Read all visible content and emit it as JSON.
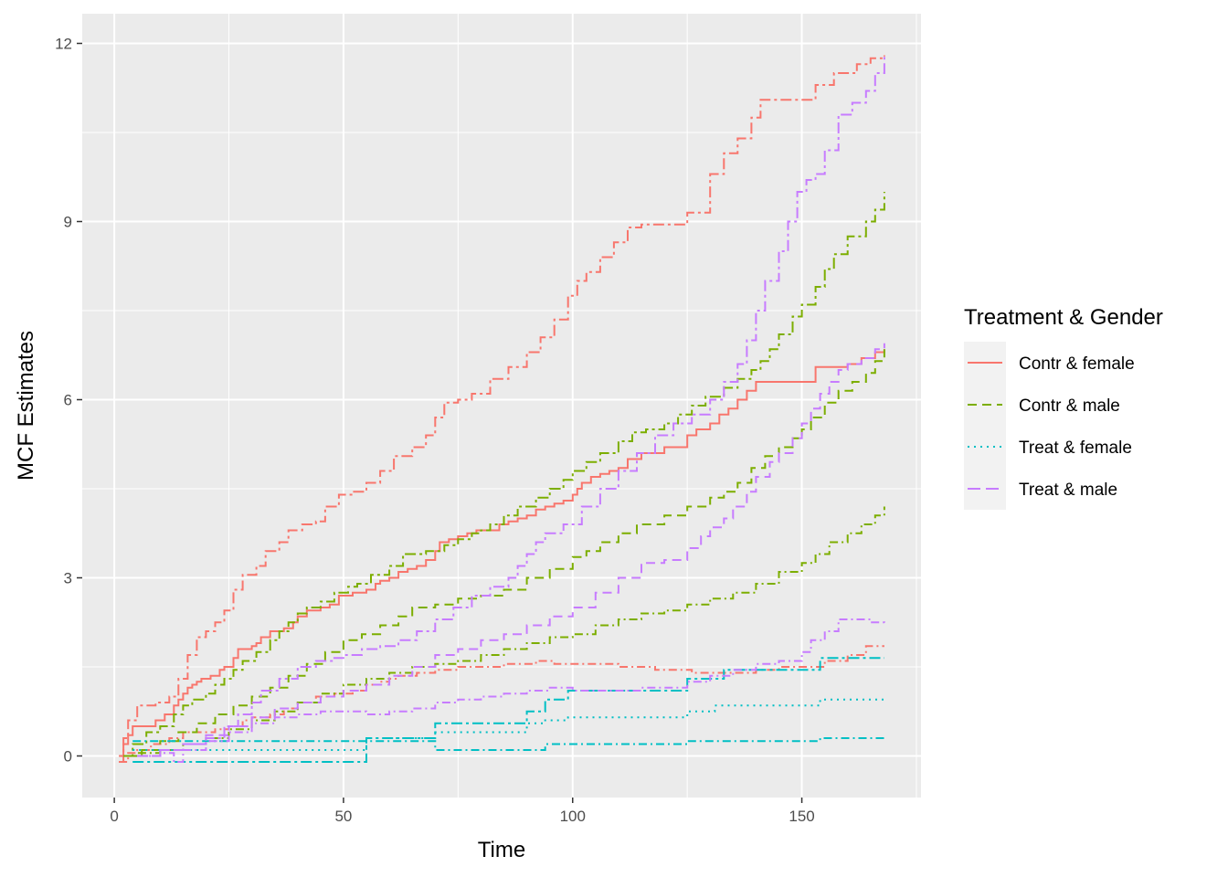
{
  "chart_data": {
    "type": "line",
    "step": true,
    "xlabel": "Time",
    "ylabel": "MCF Estimates",
    "xlim": [
      -7,
      176
    ],
    "ylim": [
      -0.7,
      12.5
    ],
    "xticks": [
      0,
      50,
      100,
      150
    ],
    "yticks": [
      0,
      3,
      6,
      9,
      12
    ],
    "xtick_labels": [
      "0",
      "50",
      "100",
      "150"
    ],
    "ytick_labels": [
      "0",
      "3",
      "6",
      "9",
      "12"
    ],
    "grid": true,
    "panel_background": "#ebebeb",
    "legend": {
      "title": "Treatment & Gender",
      "placement": "right",
      "entries": [
        {
          "label": "Contr & female",
          "color": "#f8766d",
          "linetype": "solid"
        },
        {
          "label": "Contr & male",
          "color": "#7cae00",
          "linetype": "dashed"
        },
        {
          "label": "Treat & female",
          "color": "#00bfc4",
          "linetype": "dotted"
        },
        {
          "label": "Treat & male",
          "color": "#c77cff",
          "linetype": "longdash"
        }
      ]
    },
    "series": [
      {
        "label": "Contr & female",
        "color": "#f8766d",
        "linetype": "solid",
        "x": [
          1,
          2,
          3,
          4,
          9,
          11,
          13,
          14,
          15,
          16,
          17,
          18,
          19,
          21,
          23,
          24,
          26,
          27,
          30,
          31,
          32,
          34,
          35,
          37,
          39,
          40,
          42,
          45,
          47,
          49,
          52,
          55,
          56,
          57,
          58,
          60,
          62,
          64,
          66,
          68,
          70,
          71,
          73,
          75,
          77,
          79,
          82,
          84,
          86,
          88,
          90,
          92,
          94,
          96,
          98,
          100,
          101,
          102,
          104,
          106,
          108,
          110,
          112,
          115,
          120,
          125,
          127,
          130,
          132,
          134,
          136,
          138,
          140,
          145,
          150,
          153,
          156,
          160,
          163,
          166,
          168
        ],
        "y": [
          0,
          0.2,
          0.35,
          0.5,
          0.6,
          0.7,
          0.85,
          0.95,
          1.05,
          1.15,
          1.2,
          1.25,
          1.3,
          1.35,
          1.45,
          1.5,
          1.65,
          1.8,
          1.85,
          1.9,
          2.0,
          2.1,
          2.1,
          2.15,
          2.25,
          2.35,
          2.45,
          2.5,
          2.55,
          2.7,
          2.75,
          2.8,
          2.8,
          2.9,
          2.95,
          3.0,
          3.1,
          3.15,
          3.2,
          3.3,
          3.45,
          3.6,
          3.65,
          3.7,
          3.75,
          3.8,
          3.8,
          3.9,
          3.95,
          4.0,
          4.05,
          4.15,
          4.2,
          4.25,
          4.3,
          4.4,
          4.5,
          4.6,
          4.7,
          4.75,
          4.8,
          4.85,
          5.0,
          5.1,
          5.2,
          5.4,
          5.5,
          5.6,
          5.75,
          5.85,
          6.0,
          6.15,
          6.3,
          6.3,
          6.3,
          6.55,
          6.55,
          6.6,
          6.7,
          6.8,
          6.85
        ]
      },
      {
        "label": "Contr & female",
        "color": "#f8766d",
        "linetype": "twodash",
        "x": [
          1,
          2,
          3,
          5,
          9,
          12,
          14,
          16,
          18,
          20,
          22,
          24,
          26,
          28,
          31,
          33,
          36,
          38,
          41,
          44,
          46,
          49,
          52,
          55,
          58,
          61,
          65,
          68,
          70,
          72,
          75,
          78,
          82,
          86,
          90,
          93,
          96,
          99,
          101,
          103,
          106,
          109,
          112,
          115,
          120,
          125,
          130,
          133,
          136,
          139,
          141,
          150,
          153,
          157,
          162,
          165,
          168
        ],
        "y": [
          -0.1,
          0.3,
          0.6,
          0.85,
          0.9,
          1.0,
          1.3,
          1.7,
          2.0,
          2.1,
          2.25,
          2.45,
          2.8,
          3.05,
          3.2,
          3.45,
          3.6,
          3.8,
          3.9,
          3.95,
          4.2,
          4.4,
          4.45,
          4.6,
          4.8,
          5.05,
          5.2,
          5.4,
          5.7,
          5.95,
          6.0,
          6.1,
          6.35,
          6.55,
          6.8,
          7.05,
          7.35,
          7.75,
          8.0,
          8.15,
          8.4,
          8.65,
          8.9,
          8.95,
          8.95,
          9.15,
          9.8,
          10.15,
          10.4,
          10.75,
          11.05,
          11.05,
          11.3,
          11.5,
          11.65,
          11.75,
          11.8
        ]
      },
      {
        "label": "Contr & female",
        "color": "#f8766d",
        "linetype": "dashdotted",
        "x": [
          1,
          3,
          5,
          8,
          12,
          15,
          18,
          22,
          25,
          28,
          30,
          34,
          37,
          40,
          44,
          48,
          52,
          55,
          58,
          60,
          62,
          66,
          70,
          75,
          80,
          85,
          88,
          92,
          96,
          100,
          105,
          110,
          115,
          118,
          122,
          126,
          130,
          135,
          140,
          145,
          150,
          155,
          160,
          164,
          168
        ],
        "y": [
          -0.1,
          0.05,
          0.1,
          0.2,
          0.3,
          0.4,
          0.4,
          0.45,
          0.5,
          0.6,
          0.65,
          0.7,
          0.8,
          0.9,
          1.0,
          1.05,
          1.1,
          1.2,
          1.25,
          1.3,
          1.35,
          1.4,
          1.45,
          1.5,
          1.5,
          1.55,
          1.55,
          1.6,
          1.55,
          1.55,
          1.55,
          1.5,
          1.5,
          1.45,
          1.45,
          1.4,
          1.4,
          1.4,
          1.45,
          1.5,
          1.5,
          1.6,
          1.7,
          1.85,
          1.85
        ]
      },
      {
        "label": "Contr & male",
        "color": "#7cae00",
        "linetype": "twodash",
        "x": [
          2,
          4,
          7,
          10,
          13,
          15,
          17,
          20,
          22,
          24,
          26,
          28,
          31,
          34,
          36,
          38,
          40,
          42,
          45,
          48,
          51,
          53,
          56,
          60,
          63,
          65,
          68,
          72,
          75,
          78,
          80,
          82,
          85,
          88,
          92,
          95,
          98,
          100,
          103,
          106,
          110,
          113,
          116,
          120,
          123,
          126,
          129,
          133,
          136,
          139,
          141,
          143,
          145,
          148,
          150,
          153,
          155,
          157,
          160,
          164,
          166,
          168
        ],
        "y": [
          0.0,
          0.2,
          0.4,
          0.5,
          0.7,
          0.85,
          0.95,
          1.05,
          1.2,
          1.3,
          1.45,
          1.6,
          1.75,
          1.95,
          2.1,
          2.25,
          2.4,
          2.5,
          2.6,
          2.75,
          2.85,
          2.9,
          3.05,
          3.2,
          3.4,
          3.4,
          3.45,
          3.55,
          3.65,
          3.75,
          3.8,
          3.9,
          4.05,
          4.2,
          4.35,
          4.5,
          4.65,
          4.8,
          4.95,
          5.1,
          5.3,
          5.45,
          5.5,
          5.6,
          5.75,
          5.9,
          6.05,
          6.2,
          6.35,
          6.5,
          6.65,
          6.85,
          7.1,
          7.4,
          7.6,
          7.9,
          8.2,
          8.45,
          8.75,
          9.0,
          9.2,
          9.5
        ]
      },
      {
        "label": "Contr & male",
        "color": "#7cae00",
        "linetype": "dashed",
        "x": [
          3,
          6,
          10,
          14,
          18,
          22,
          26,
          30,
          34,
          38,
          42,
          46,
          50,
          54,
          58,
          62,
          65,
          70,
          75,
          80,
          85,
          90,
          95,
          100,
          103,
          106,
          110,
          114,
          120,
          125,
          130,
          133,
          136,
          139,
          142,
          145,
          148,
          150,
          152,
          155,
          158,
          161,
          164,
          166,
          168
        ],
        "y": [
          0.0,
          0.1,
          0.25,
          0.4,
          0.55,
          0.7,
          0.85,
          1.0,
          1.15,
          1.35,
          1.55,
          1.75,
          1.95,
          2.05,
          2.2,
          2.35,
          2.5,
          2.55,
          2.65,
          2.7,
          2.8,
          3.0,
          3.15,
          3.35,
          3.45,
          3.6,
          3.75,
          3.9,
          4.05,
          4.2,
          4.35,
          4.45,
          4.6,
          4.85,
          5.05,
          5.2,
          5.35,
          5.5,
          5.7,
          5.95,
          6.15,
          6.3,
          6.45,
          6.65,
          6.85
        ]
      },
      {
        "label": "Contr & male",
        "color": "#7cae00",
        "linetype": "dashdotted",
        "x": [
          2,
          5,
          10,
          15,
          20,
          25,
          30,
          35,
          40,
          45,
          50,
          55,
          60,
          65,
          70,
          75,
          80,
          85,
          90,
          95,
          100,
          105,
          110,
          115,
          120,
          125,
          130,
          135,
          140,
          145,
          150,
          153,
          156,
          160,
          163,
          166,
          168
        ],
        "y": [
          0.0,
          0.05,
          0.1,
          0.2,
          0.3,
          0.45,
          0.6,
          0.75,
          0.9,
          1.05,
          1.2,
          1.3,
          1.4,
          1.5,
          1.55,
          1.6,
          1.7,
          1.8,
          1.9,
          2.0,
          2.05,
          2.2,
          2.3,
          2.4,
          2.45,
          2.55,
          2.65,
          2.75,
          2.9,
          3.1,
          3.25,
          3.4,
          3.6,
          3.75,
          3.9,
          4.05,
          4.2
        ]
      },
      {
        "label": "Treat & female",
        "color": "#00bfc4",
        "linetype": "twodash",
        "x": [
          4,
          15,
          54,
          55,
          69,
          70,
          89,
          90,
          93,
          94,
          98,
          99,
          124,
          125,
          132,
          133,
          153,
          154,
          168
        ],
        "y": [
          -0.1,
          -0.1,
          -0.1,
          0.3,
          0.3,
          0.55,
          0.55,
          0.75,
          0.75,
          0.95,
          0.95,
          1.1,
          1.1,
          1.3,
          1.3,
          1.45,
          1.45,
          1.65,
          1.65
        ]
      },
      {
        "label": "Treat & female",
        "color": "#00bfc4",
        "linetype": "dotted",
        "x": [
          4,
          15,
          54,
          55,
          69,
          70,
          89,
          90,
          93,
          94,
          98,
          99,
          124,
          125,
          130,
          131,
          153,
          154,
          168
        ],
        "y": [
          0.1,
          0.1,
          0.1,
          0.3,
          0.3,
          0.4,
          0.4,
          0.55,
          0.55,
          0.6,
          0.6,
          0.65,
          0.65,
          0.75,
          0.75,
          0.85,
          0.85,
          0.95,
          0.95
        ]
      },
      {
        "label": "Treat & female",
        "color": "#00bfc4",
        "linetype": "dashdotted",
        "x": [
          4,
          15,
          54,
          55,
          69,
          70,
          89,
          90,
          93,
          94,
          98,
          99,
          124,
          125,
          130,
          131,
          153,
          154,
          168
        ],
        "y": [
          0.25,
          0.25,
          0.25,
          0.25,
          0.25,
          0.1,
          0.1,
          0.1,
          0.1,
          0.2,
          0.2,
          0.2,
          0.2,
          0.25,
          0.25,
          0.25,
          0.25,
          0.3,
          0.3
        ]
      },
      {
        "label": "Treat & male",
        "color": "#c77cff",
        "linetype": "twodash",
        "x": [
          5,
          10,
          15,
          20,
          24,
          27,
          30,
          32,
          36,
          40,
          44,
          48,
          50,
          54,
          58,
          62,
          66,
          70,
          74,
          78,
          82,
          86,
          88,
          90,
          92,
          94,
          98,
          102,
          106,
          110,
          114,
          118,
          122,
          126,
          130,
          133,
          136,
          138,
          140,
          142,
          145,
          147,
          149,
          151,
          153,
          155,
          158,
          161,
          164,
          166,
          168
        ],
        "y": [
          0.0,
          0.1,
          0.2,
          0.3,
          0.5,
          0.7,
          0.9,
          1.1,
          1.3,
          1.5,
          1.6,
          1.65,
          1.7,
          1.8,
          1.85,
          1.95,
          2.1,
          2.3,
          2.5,
          2.7,
          2.85,
          3.0,
          3.2,
          3.4,
          3.6,
          3.75,
          3.9,
          4.2,
          4.5,
          4.8,
          5.1,
          5.4,
          5.6,
          5.75,
          6.0,
          6.3,
          6.6,
          7.0,
          7.5,
          8.0,
          8.5,
          9.0,
          9.5,
          9.7,
          9.8,
          10.2,
          10.8,
          11.0,
          11.2,
          11.5,
          11.8
        ]
      },
      {
        "label": "Treat & male",
        "color": "#c77cff",
        "linetype": "dashed",
        "x": [
          5,
          10,
          15,
          20,
          25,
          30,
          35,
          40,
          45,
          50,
          55,
          60,
          65,
          70,
          75,
          80,
          85,
          90,
          95,
          100,
          105,
          110,
          115,
          120,
          125,
          128,
          130,
          133,
          135,
          138,
          140,
          143,
          145,
          148,
          150,
          152,
          154,
          156,
          158,
          160,
          163,
          166,
          168
        ],
        "y": [
          0.0,
          0.1,
          0.2,
          0.35,
          0.5,
          0.65,
          0.8,
          0.9,
          1.0,
          1.1,
          1.2,
          1.35,
          1.5,
          1.7,
          1.8,
          1.95,
          2.05,
          2.2,
          2.35,
          2.5,
          2.75,
          3.0,
          3.25,
          3.3,
          3.5,
          3.7,
          3.85,
          4.0,
          4.2,
          4.45,
          4.7,
          4.95,
          5.1,
          5.35,
          5.6,
          5.85,
          6.1,
          6.3,
          6.5,
          6.6,
          6.7,
          6.85,
          6.95
        ]
      },
      {
        "label": "Treat & male",
        "color": "#c77cff",
        "linetype": "dashdotted",
        "x": [
          5,
          10,
          13,
          15,
          20,
          25,
          30,
          35,
          40,
          45,
          50,
          55,
          60,
          65,
          70,
          75,
          80,
          85,
          90,
          95,
          100,
          105,
          110,
          115,
          120,
          125,
          130,
          135,
          140,
          145,
          150,
          152,
          155,
          158,
          161,
          165,
          168
        ],
        "y": [
          0.0,
          0.05,
          -0.1,
          0.1,
          0.25,
          0.4,
          0.55,
          0.65,
          0.7,
          0.75,
          0.75,
          0.7,
          0.75,
          0.8,
          0.9,
          0.95,
          1.0,
          1.05,
          1.1,
          1.15,
          1.1,
          1.1,
          1.1,
          1.15,
          1.15,
          1.25,
          1.35,
          1.45,
          1.55,
          1.6,
          1.75,
          1.95,
          2.1,
          2.3,
          2.3,
          2.25,
          2.2
        ]
      }
    ]
  }
}
